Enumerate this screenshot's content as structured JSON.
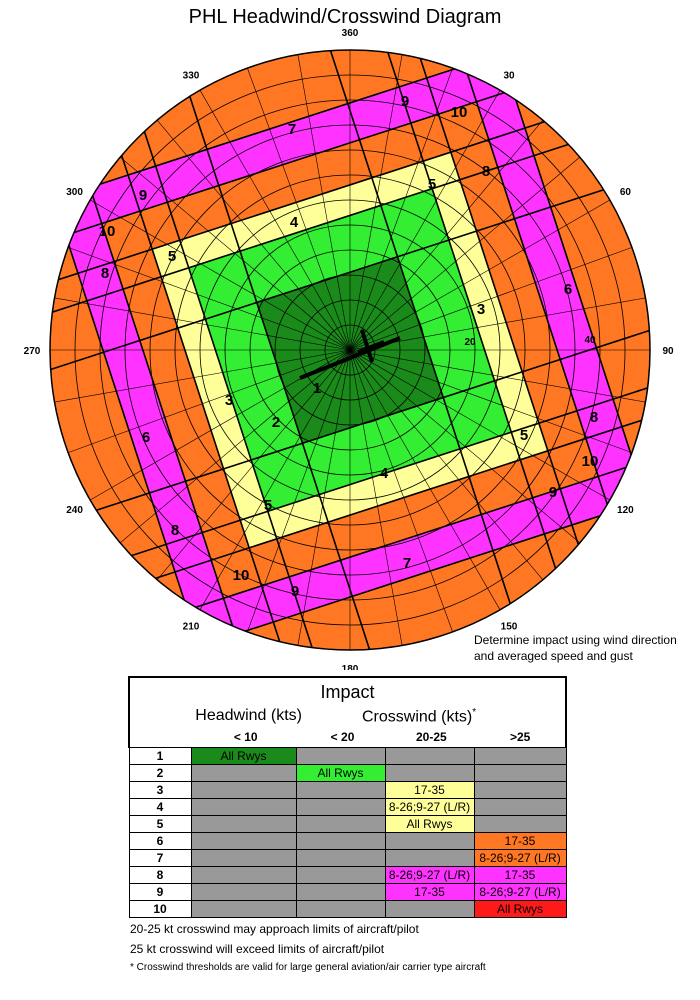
{
  "title": "PHL Headwind/Crosswind Diagram",
  "compass": {
    "labels": [
      {
        "deg": 0,
        "text": "360"
      },
      {
        "deg": 30,
        "text": "30"
      },
      {
        "deg": 60,
        "text": "60"
      },
      {
        "deg": 90,
        "text": "90"
      },
      {
        "deg": 120,
        "text": "120"
      },
      {
        "deg": 150,
        "text": "150"
      },
      {
        "deg": 180,
        "text": "180"
      },
      {
        "deg": 210,
        "text": "210"
      },
      {
        "deg": 240,
        "text": "240"
      },
      {
        "deg": 270,
        "text": "270"
      },
      {
        "deg": 300,
        "text": "300"
      },
      {
        "deg": 330,
        "text": "330"
      }
    ],
    "speed_labels": [
      "20",
      "40"
    ]
  },
  "zones": {
    "colors": {
      "1": "#1a8a1a",
      "2": "#33ee33",
      "3": "#ffff99",
      "4": "#ffff99",
      "5": "#ffff99",
      "6": "#ff7722",
      "7": "#ff7722",
      "8": "#ff33ff",
      "9": "#ff33ff",
      "10": "#ff1a1a"
    },
    "labels": [
      "1",
      "2",
      "3",
      "3",
      "4",
      "4",
      "5",
      "5",
      "5",
      "5",
      "6",
      "6",
      "7",
      "7",
      "8",
      "8",
      "8",
      "8",
      "9",
      "9",
      "9",
      "9",
      "10",
      "10",
      "10",
      "10"
    ]
  },
  "note": {
    "line1": "Determine impact using wind direction",
    "line2": "and averaged speed and gust"
  },
  "impact": {
    "title": "Impact",
    "headwind_header": "Headwind (kts)",
    "crosswind_header": "Crosswind (kts)",
    "crosswind_footmark": "*",
    "columns": [
      "< 10",
      "< 20",
      "20-25",
      ">25"
    ],
    "rows": [
      {
        "num": "1",
        "cells": [
          "All Rwys",
          "",
          "",
          ""
        ],
        "colors": [
          "#1a8a1a",
          "#999999",
          "#999999",
          "#999999"
        ]
      },
      {
        "num": "2",
        "cells": [
          "",
          "All Rwys",
          "",
          ""
        ],
        "colors": [
          "#999999",
          "#33ee33",
          "#999999",
          "#999999"
        ]
      },
      {
        "num": "3",
        "cells": [
          "",
          "",
          "17-35",
          ""
        ],
        "colors": [
          "#999999",
          "#999999",
          "#ffff99",
          "#999999"
        ]
      },
      {
        "num": "4",
        "cells": [
          "",
          "",
          "8-26;9-27 (L/R)",
          ""
        ],
        "colors": [
          "#999999",
          "#999999",
          "#ffff99",
          "#999999"
        ]
      },
      {
        "num": "5",
        "cells": [
          "",
          "",
          "All Rwys",
          ""
        ],
        "colors": [
          "#999999",
          "#999999",
          "#ffff99",
          "#999999"
        ]
      },
      {
        "num": "6",
        "cells": [
          "",
          "",
          "",
          "17-35"
        ],
        "colors": [
          "#999999",
          "#999999",
          "#999999",
          "#ff7722"
        ]
      },
      {
        "num": "7",
        "cells": [
          "",
          "",
          "",
          "8-26;9-27 (L/R)"
        ],
        "colors": [
          "#999999",
          "#999999",
          "#999999",
          "#ff7722"
        ]
      },
      {
        "num": "8",
        "cells": [
          "",
          "",
          "8-26;9-27 (L/R)",
          "17-35"
        ],
        "colors": [
          "#999999",
          "#999999",
          "#ff33ff",
          "#ff33ff"
        ]
      },
      {
        "num": "9",
        "cells": [
          "",
          "",
          "17-35",
          "8-26;9-27 (L/R)"
        ],
        "colors": [
          "#999999",
          "#999999",
          "#ff33ff",
          "#ff33ff"
        ]
      },
      {
        "num": "10",
        "cells": [
          "",
          "",
          "",
          "All Rwys"
        ],
        "colors": [
          "#999999",
          "#999999",
          "#999999",
          "#ff1a1a"
        ]
      }
    ]
  },
  "footnotes": {
    "line1": "20-25 kt crosswind may approach limits of aircraft/pilot",
    "line2": "25 kt crosswind will exceed limits of aircraft/pilot",
    "line3": "* Crosswind thresholds are valid for large general aviation/air carrier type aircraft"
  }
}
